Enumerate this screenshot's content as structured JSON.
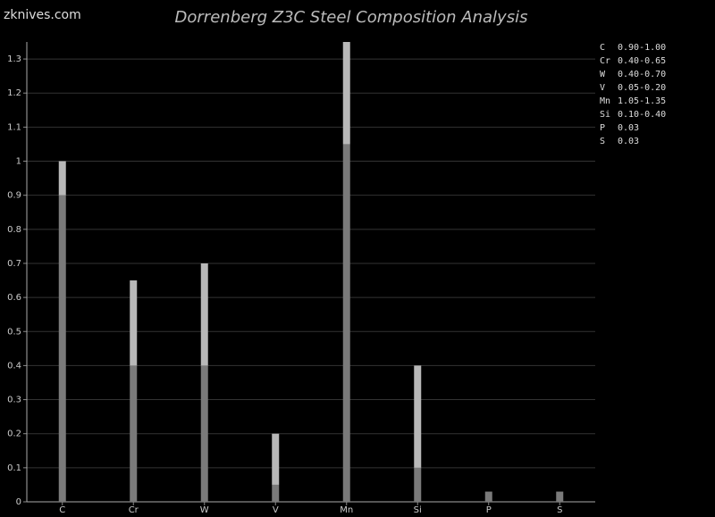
{
  "watermark": "zknives.com",
  "chart_data": {
    "type": "bar",
    "stacked": true,
    "title": "Dorrenberg Z3C Steel Composition Analysis",
    "categories": [
      "C",
      "Cr",
      "W",
      "V",
      "Mn",
      "Si",
      "P",
      "S"
    ],
    "series": [
      {
        "color": "#7a7a7a",
        "values": [
          0.9,
          0.4,
          0.4,
          0.05,
          1.05,
          0.1,
          0.03,
          0.03
        ]
      },
      {
        "color": "#b8b8b8",
        "values": [
          0.1,
          0.25,
          0.3,
          0.15,
          0.3,
          0.3,
          null,
          null
        ]
      }
    ],
    "ylim": [
      0,
      1.35
    ],
    "yticks": [
      0,
      0.1,
      0.2,
      0.3,
      0.4,
      0.5,
      0.6,
      0.7,
      0.8,
      0.9,
      1,
      1.1,
      1.2,
      1.3
    ],
    "grid": true,
    "legend": [
      {
        "element": "C",
        "range": "0.90-1.00"
      },
      {
        "element": "Cr",
        "range": "0.40-0.65"
      },
      {
        "element": "W",
        "range": "0.40-0.70"
      },
      {
        "element": "V",
        "range": "0.05-0.20"
      },
      {
        "element": "Mn",
        "range": "1.05-1.35"
      },
      {
        "element": "Si",
        "range": "0.10-0.40"
      },
      {
        "element": "P",
        "range": "0.03"
      },
      {
        "element": "S",
        "range": "0.03"
      }
    ]
  }
}
